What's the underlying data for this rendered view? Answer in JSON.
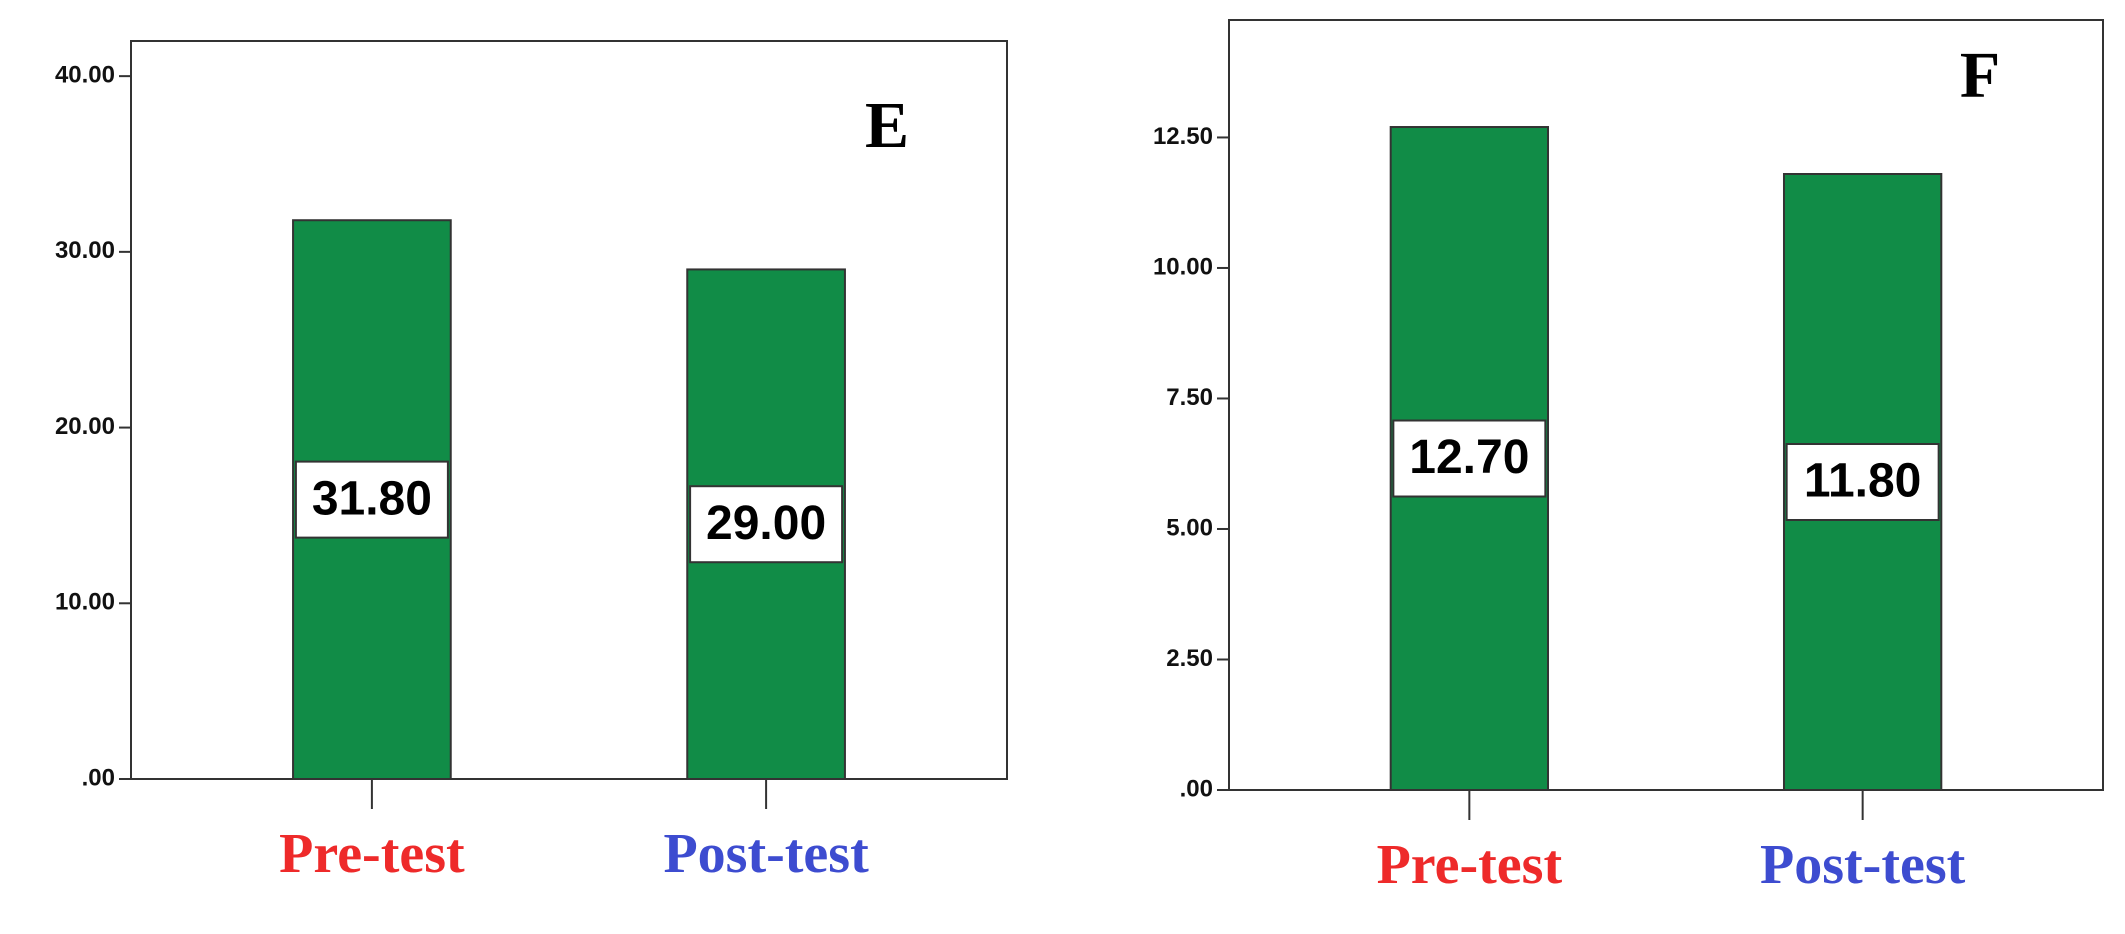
{
  "chart_data": [
    {
      "type": "bar",
      "annotation": "E",
      "categories": [
        "Pre-test",
        "Post-test"
      ],
      "category_colors": [
        "#ee2a2a",
        "#3d4cd0"
      ],
      "values": [
        31.8,
        29.0
      ],
      "value_labels": [
        "31.80",
        "29.00"
      ],
      "color": "#118c47",
      "ylim": [
        0,
        42
      ],
      "yticks": [
        {
          "value": 0,
          "label": ".00"
        },
        {
          "value": 10,
          "label": "10.00"
        },
        {
          "value": 20,
          "label": "20.00"
        },
        {
          "value": 30,
          "label": "30.00"
        },
        {
          "value": 40,
          "label": "40.00"
        }
      ]
    },
    {
      "type": "bar",
      "annotation": "F",
      "categories": [
        "Pre-test",
        "Post-test"
      ],
      "category_colors": [
        "#ee2a2a",
        "#3d4cd0"
      ],
      "values": [
        12.7,
        11.8
      ],
      "value_labels": [
        "12.70",
        "11.80"
      ],
      "color": "#118c47",
      "ylim": [
        0,
        14.75
      ],
      "yticks": [
        {
          "value": 0,
          "label": ".00"
        },
        {
          "value": 2.5,
          "label": "2.50"
        },
        {
          "value": 5,
          "label": "5.00"
        },
        {
          "value": 7.5,
          "label": "7.50"
        },
        {
          "value": 10,
          "label": "10.00"
        },
        {
          "value": 12.5,
          "label": "12.50"
        }
      ]
    }
  ]
}
